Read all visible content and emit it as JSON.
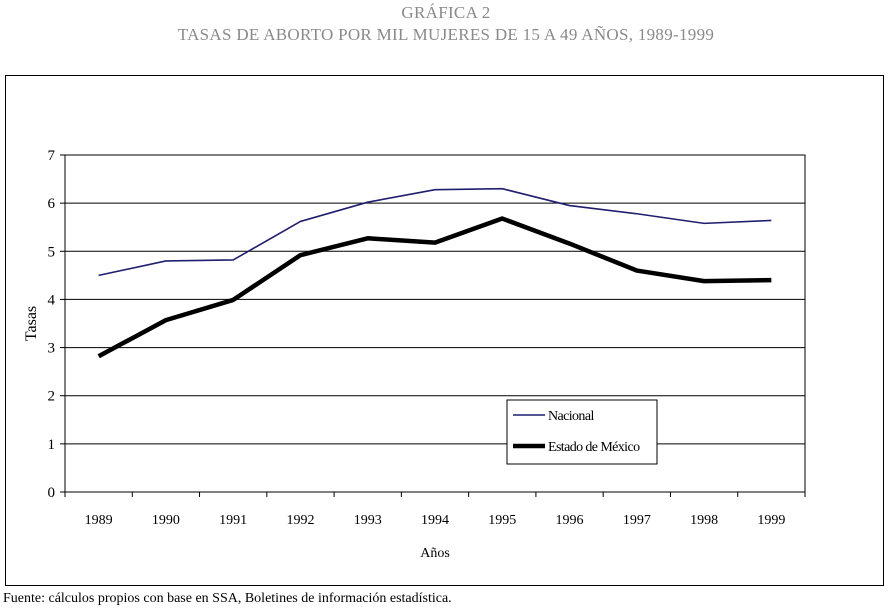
{
  "header": {
    "title": "GRÁFICA 2",
    "subtitle": "TASAS DE ABORTO POR MIL MUJERES DE 15 A 49 AÑOS, 1989-1999"
  },
  "source_note": "Fuente: cálculos propios con base en SSA, Boletines de información estadística.",
  "colors": {
    "nacional": "#1f1f6e",
    "estado": "#000000",
    "gridline": "#000000",
    "title": "#8a8a8a"
  },
  "chart_data": {
    "type": "line",
    "title": "TASAS DE ABORTO POR MIL MUJERES DE 15 A 49 AÑOS, 1989-1999",
    "xlabel": "Años",
    "ylabel": "Tasas",
    "ylim": [
      0,
      7
    ],
    "yticks": [
      "0",
      "1",
      "2",
      "3",
      "4",
      "5",
      "6",
      "7"
    ],
    "categories": [
      "1989",
      "1990",
      "1991",
      "1992",
      "1993",
      "1994",
      "1995",
      "1996",
      "1997",
      "1998",
      "1999"
    ],
    "grid": true,
    "legend_position": "lower-right",
    "series": [
      {
        "name": "Nacional",
        "values": [
          4.5,
          4.8,
          4.82,
          5.62,
          6.02,
          6.28,
          6.3,
          5.95,
          5.78,
          5.58,
          5.64
        ]
      },
      {
        "name": "Estado de México",
        "values": [
          2.82,
          3.57,
          3.99,
          4.92,
          5.27,
          5.18,
          5.68,
          5.16,
          4.6,
          4.38,
          4.4
        ]
      }
    ]
  }
}
